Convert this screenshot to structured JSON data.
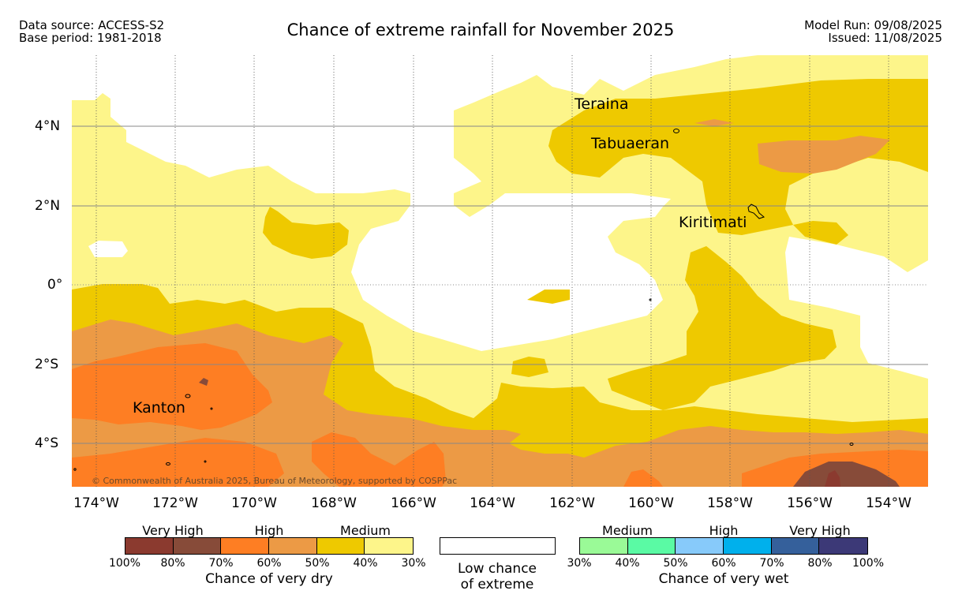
{
  "header": {
    "data_source": "Data source: ACCESS-S2",
    "base_period": "Base period: 1981-2018",
    "title": "Chance of extreme rainfall for November 2025",
    "model_run": "Model Run: 09/08/2025",
    "issued": "Issued: 11/08/2025"
  },
  "map": {
    "places": [
      "Teraina",
      "Tabuaeran",
      "Kiritimati",
      "Kanton"
    ],
    "copyright": "© Commonwealth of Australia 2025, Bureau of Meteorology, supported by COSPPac",
    "x_ticks": [
      "174°W",
      "172°W",
      "170°W",
      "168°W",
      "166°W",
      "164°W",
      "162°W",
      "160°W",
      "158°W",
      "156°W",
      "154°W"
    ],
    "y_ticks": [
      "4°N",
      "2°N",
      "0°",
      "2°S",
      "4°S"
    ]
  },
  "legend": {
    "dry": {
      "categories": [
        "Very High",
        "High",
        "Medium"
      ],
      "colors": [
        "#8b3a2f",
        "#874b39",
        "#fe7e23",
        "#ec9a45",
        "#eec900",
        "#fdf58a"
      ],
      "labels": [
        "100%",
        "80%",
        "70%",
        "60%",
        "50%",
        "40%",
        "30%"
      ],
      "title": "Chance of very dry"
    },
    "low": {
      "line1": "Low chance",
      "line2": "of extreme",
      "color": "#ffffff"
    },
    "wet": {
      "categories": [
        "Medium",
        "High",
        "Very High"
      ],
      "colors": [
        "#9afa97",
        "#5afaa4",
        "#87cafa",
        "#00b0ec",
        "#35609b",
        "#3c3977"
      ],
      "labels": [
        "30%",
        "40%",
        "50%",
        "60%",
        "70%",
        "80%",
        "100%"
      ],
      "title": "Chance of very wet"
    }
  }
}
